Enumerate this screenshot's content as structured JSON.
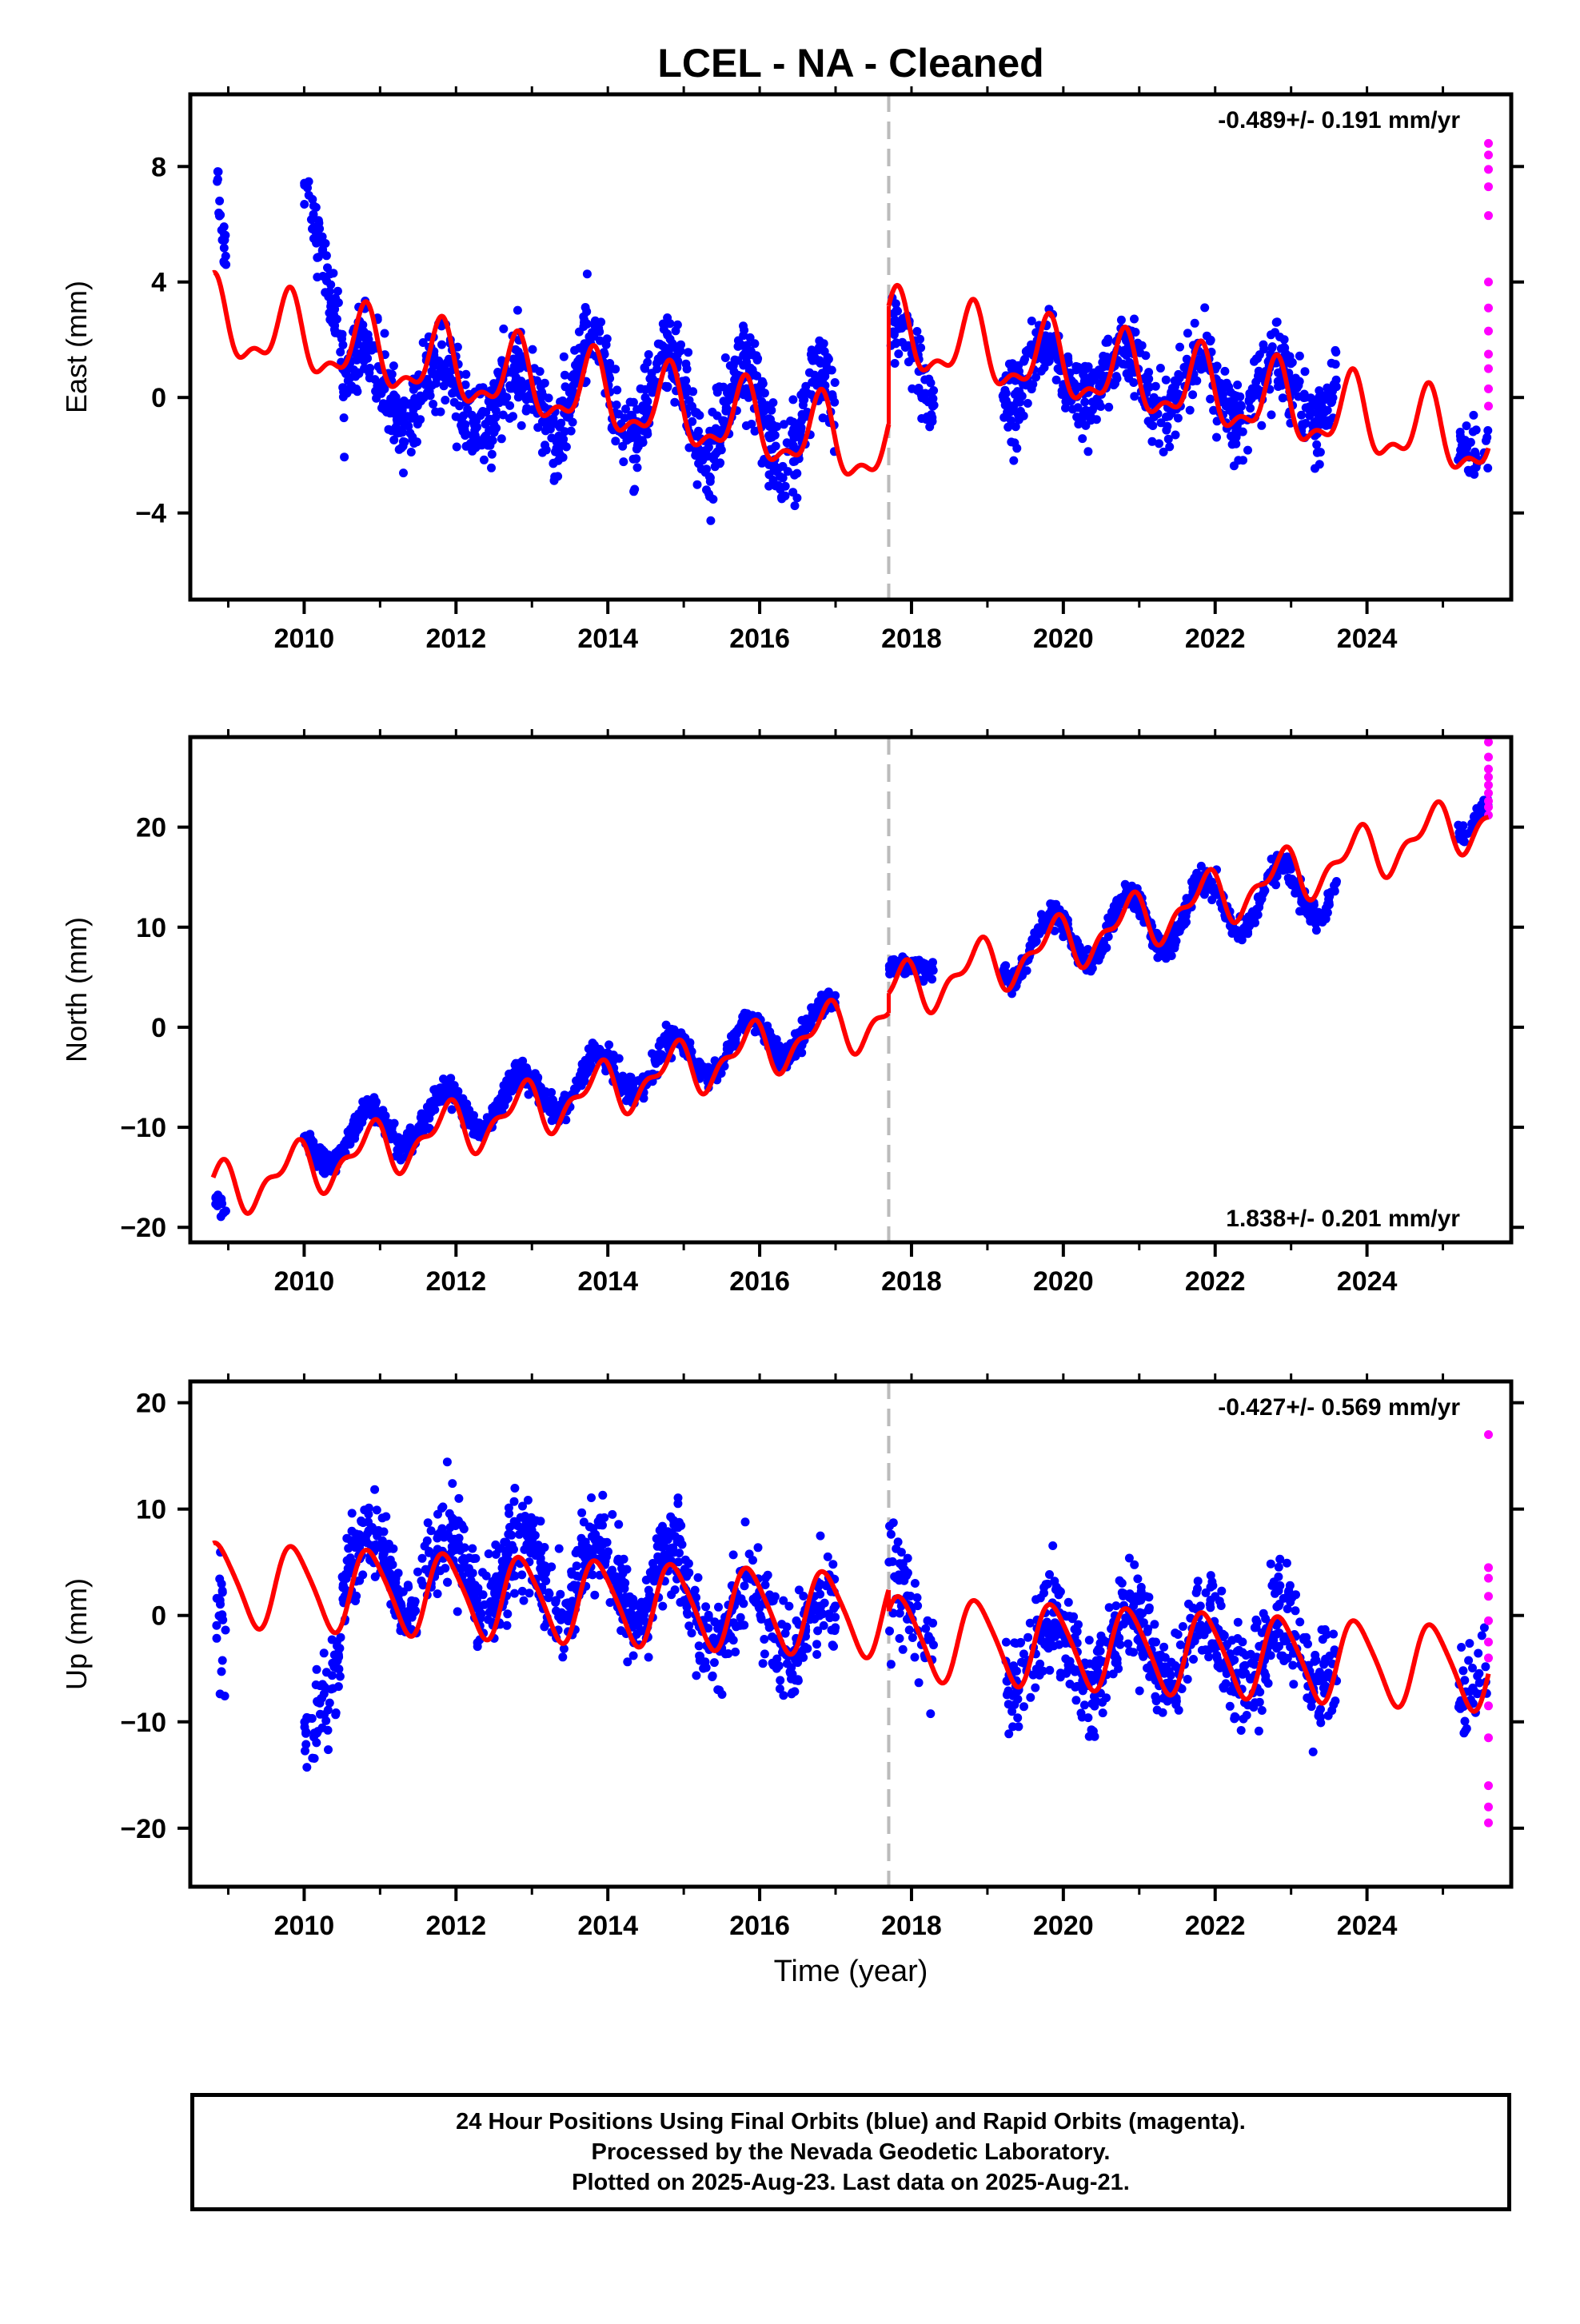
{
  "title": "LCEL  - NA - Cleaned",
  "colors": {
    "final": "#0000ff",
    "rapid": "#ff00ff",
    "model": "#ff0000",
    "break": "#bbbbbb",
    "frame": "#000000"
  },
  "footer": {
    "line1": "24 Hour Positions Using Final Orbits (blue) and Rapid Orbits (magenta).",
    "line2": "Processed by the Nevada Geodetic Laboratory.",
    "line3": "Plotted on 2025-Aug-23. Last data on 2025-Aug-21."
  },
  "chart_data": [
    {
      "type": "scatter",
      "title": "LCEL  - NA - Cleaned",
      "ylabel": "East (mm)",
      "xlabel": "",
      "xlim": [
        2008.5,
        2025.9
      ],
      "ylim": [
        -7,
        10.5
      ],
      "xticks": [
        2010,
        2012,
        2014,
        2016,
        2018,
        2020,
        2022,
        2024
      ],
      "yticks": [
        8,
        4,
        0,
        -4
      ],
      "ytick_labels": [
        "8",
        "4",
        "0",
        "−4"
      ],
      "rate_label": "-0.489+/- 0.191 mm/yr",
      "rate_position": "top-right",
      "break_epoch": 2017.7,
      "gaps": [
        [
          2009.0,
          2010.0
        ],
        [
          2017.0,
          2017.7
        ],
        [
          2018.3,
          2019.2
        ],
        [
          2023.6,
          2025.2
        ]
      ],
      "final_series": [
        {
          "t0": 2008.83,
          "t1": 2008.97,
          "trend": [
            7.5,
            4.5
          ],
          "amp": 0.6,
          "noise": 0.9,
          "n": 20
        },
        {
          "t0": 2010.0,
          "t1": 2010.5,
          "trend": [
            7.5,
            2.5
          ],
          "amp": 0.4,
          "noise": 1.0,
          "n": 60
        },
        {
          "t0": 2010.5,
          "t1": 2013.0,
          "trend": [
            0.6,
            -0.3
          ],
          "amp": 1.2,
          "noise": 1.3,
          "n": 420
        },
        {
          "t0": 2013.0,
          "t1": 2017.0,
          "trend": [
            0.5,
            -1.0
          ],
          "amp": 1.8,
          "noise": 1.4,
          "n": 620
        },
        {
          "t0": 2017.7,
          "t1": 2018.3,
          "trend": [
            1.5,
            0.8
          ],
          "amp": 1.0,
          "noise": 1.1,
          "n": 70
        },
        {
          "t0": 2019.2,
          "t1": 2023.6,
          "trend": [
            1.0,
            0.0
          ],
          "amp": 1.0,
          "noise": 1.2,
          "n": 620
        },
        {
          "t0": 2025.2,
          "t1": 2025.6,
          "trend": [
            -1.0,
            -2.0
          ],
          "amp": 0.6,
          "noise": 1.0,
          "n": 35
        }
      ],
      "rapid_points": [
        {
          "x": 2025.6,
          "y": 8.8
        },
        {
          "x": 2025.6,
          "y": 8.4
        },
        {
          "x": 2025.6,
          "y": 7.9
        },
        {
          "x": 2025.6,
          "y": 7.3
        },
        {
          "x": 2025.6,
          "y": 6.3
        },
        {
          "x": 2025.6,
          "y": 4.0
        },
        {
          "x": 2025.6,
          "y": 3.1
        },
        {
          "x": 2025.6,
          "y": 2.3
        },
        {
          "x": 2025.6,
          "y": 1.5
        },
        {
          "x": 2025.6,
          "y": 1.0
        },
        {
          "x": 2025.6,
          "y": 0.3
        },
        {
          "x": 2025.6,
          "y": -0.3
        }
      ],
      "model": {
        "segments": [
          {
            "t0": 2008.8,
            "t1": 2017.7,
            "y0": 2.6,
            "y1": -1.9
          },
          {
            "t0": 2017.7,
            "t1": 2025.6,
            "y0": 2.2,
            "y1": -1.6
          }
        ],
        "annual_amp": 1.2,
        "annual_phase": 0.55,
        "semi_amp": 0.55,
        "semi_phase": 0.2
      }
    },
    {
      "type": "scatter",
      "ylabel": "North (mm)",
      "xlabel": "",
      "xlim": [
        2008.5,
        2025.9
      ],
      "ylim": [
        -21.5,
        29
      ],
      "xticks": [
        2010,
        2012,
        2014,
        2016,
        2018,
        2020,
        2022,
        2024
      ],
      "yticks": [
        20,
        10,
        0,
        -10,
        -20
      ],
      "ytick_labels": [
        "20",
        "10",
        "0",
        "−10",
        "−20"
      ],
      "rate_label": "1.838+/- 0.201 mm/yr",
      "rate_position": "bottom-right",
      "break_epoch": 2017.7,
      "gaps": [
        [
          2009.0,
          2010.0
        ],
        [
          2017.0,
          2017.7
        ],
        [
          2018.3,
          2019.2
        ],
        [
          2023.6,
          2025.2
        ]
      ],
      "final_series": [
        {
          "t0": 2008.83,
          "t1": 2008.97,
          "trend": [
            -18.0,
            -18.5
          ],
          "amp": 0.5,
          "noise": 1.0,
          "n": 18
        },
        {
          "t0": 2010.0,
          "t1": 2017.0,
          "trend": [
            -12.0,
            0.5
          ],
          "amp": 2.3,
          "noise": 1.1,
          "n": 1100
        },
        {
          "t0": 2017.7,
          "t1": 2018.3,
          "trend": [
            5.0,
            6.5
          ],
          "amp": 1.0,
          "noise": 1.0,
          "n": 70
        },
        {
          "t0": 2019.2,
          "t1": 2023.6,
          "trend": [
            7.5,
            14.5
          ],
          "amp": 3.0,
          "noise": 1.1,
          "n": 620
        },
        {
          "t0": 2025.2,
          "t1": 2025.6,
          "trend": [
            20.0,
            23.0
          ],
          "amp": 1.2,
          "noise": 1.0,
          "n": 35
        }
      ],
      "rapid_points": [
        {
          "x": 2025.6,
          "y": 28.5
        },
        {
          "x": 2025.6,
          "y": 27.0
        },
        {
          "x": 2025.6,
          "y": 25.8
        },
        {
          "x": 2025.6,
          "y": 25.0
        },
        {
          "x": 2025.6,
          "y": 24.2
        },
        {
          "x": 2025.6,
          "y": 23.4
        },
        {
          "x": 2025.6,
          "y": 22.6
        },
        {
          "x": 2025.6,
          "y": 22.0
        },
        {
          "x": 2025.6,
          "y": 21.2
        }
      ],
      "model": {
        "segments": [
          {
            "t0": 2008.8,
            "t1": 2017.7,
            "y0": -16.5,
            "y1": 1.2
          },
          {
            "t0": 2017.7,
            "t1": 2025.6,
            "y0": 3.2,
            "y1": 21.0
          }
        ],
        "annual_amp": 2.3,
        "annual_phase": 0.6,
        "semi_amp": 1.2,
        "semi_phase": 0.35
      }
    },
    {
      "type": "scatter",
      "ylabel": "Up (mm)",
      "xlabel": "Time (year)",
      "xlim": [
        2008.5,
        2025.9
      ],
      "ylim": [
        -25.5,
        22
      ],
      "xticks": [
        2010,
        2012,
        2014,
        2016,
        2018,
        2020,
        2022,
        2024
      ],
      "yticks": [
        20,
        10,
        0,
        -10,
        -20
      ],
      "ytick_labels": [
        "20",
        "10",
        "0",
        "−10",
        "−20"
      ],
      "rate_label": "-0.427+/- 0.569 mm/yr",
      "rate_position": "top-right",
      "break_epoch": 2017.7,
      "gaps": [
        [
          2009.0,
          2010.0
        ],
        [
          2017.0,
          2017.7
        ],
        [
          2018.3,
          2019.2
        ],
        [
          2023.6,
          2025.2
        ]
      ],
      "final_series": [
        {
          "t0": 2008.83,
          "t1": 2008.97,
          "trend": [
            0.0,
            -5.0
          ],
          "amp": 2.0,
          "noise": 5.5,
          "n": 20
        },
        {
          "t0": 2010.0,
          "t1": 2010.5,
          "trend": [
            -13.0,
            -2.0
          ],
          "amp": 1.0,
          "noise": 4.0,
          "n": 60
        },
        {
          "t0": 2010.5,
          "t1": 2015.0,
          "trend": [
            4.5,
            3.0
          ],
          "amp": 3.5,
          "noise": 3.8,
          "n": 700
        },
        {
          "t0": 2015.0,
          "t1": 2017.0,
          "trend": [
            1.0,
            -2.0
          ],
          "amp": 3.5,
          "noise": 4.0,
          "n": 260
        },
        {
          "t0": 2017.7,
          "t1": 2018.3,
          "trend": [
            1.0,
            -2.0
          ],
          "amp": 2.5,
          "noise": 5.0,
          "n": 60
        },
        {
          "t0": 2019.2,
          "t1": 2023.6,
          "trend": [
            -3.5,
            -3.0
          ],
          "amp": 3.5,
          "noise": 4.2,
          "n": 620
        },
        {
          "t0": 2025.2,
          "t1": 2025.6,
          "trend": [
            -5.0,
            -6.0
          ],
          "amp": 2.0,
          "noise": 5.0,
          "n": 35
        }
      ],
      "rapid_points": [
        {
          "x": 2025.6,
          "y": 17.0
        },
        {
          "x": 2025.6,
          "y": 4.5
        },
        {
          "x": 2025.6,
          "y": 3.5
        },
        {
          "x": 2025.6,
          "y": 1.8
        },
        {
          "x": 2025.6,
          "y": -0.5
        },
        {
          "x": 2025.6,
          "y": -2.5
        },
        {
          "x": 2025.6,
          "y": -4.0
        },
        {
          "x": 2025.6,
          "y": -8.5
        },
        {
          "x": 2025.6,
          "y": -11.5
        },
        {
          "x": 2025.6,
          "y": -16.0
        },
        {
          "x": 2025.6,
          "y": -18.0
        },
        {
          "x": 2025.6,
          "y": -19.5
        }
      ],
      "model": {
        "segments": [
          {
            "t0": 2008.8,
            "t1": 2017.7,
            "y0": 3.0,
            "y1": 0.0
          },
          {
            "t0": 2017.7,
            "t1": 2025.6,
            "y0": -2.0,
            "y1": -5.0
          }
        ],
        "annual_amp": 3.8,
        "annual_phase": 0.62,
        "semi_amp": 0.6,
        "semi_phase": 0.1
      }
    }
  ]
}
